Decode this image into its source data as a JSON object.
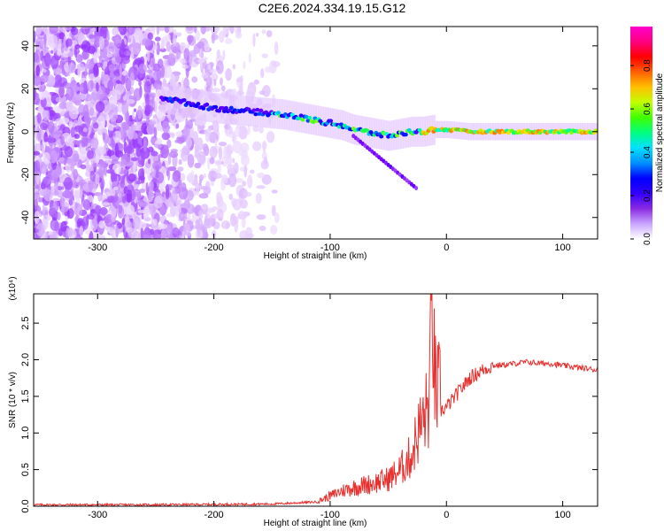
{
  "title": "C2E6.2024.334.19.15.G12",
  "colors": {
    "snr_line": "#e8302e",
    "axes": "#000000",
    "colormap": [
      "#ffffff",
      "#e6ccff",
      "#b36bff",
      "#7a00ff",
      "#3a00ff",
      "#0000ff",
      "#00a0ff",
      "#00ffe0",
      "#00ff60",
      "#80ff00",
      "#ffe000",
      "#ff8000",
      "#ff0000",
      "#ff00aa"
    ]
  },
  "chart_data": [
    {
      "type": "heatmap",
      "xlabel": "Height of straight line (km)",
      "ylabel": "Frequency (Hz)",
      "xlim": [
        -355,
        130
      ],
      "ylim": [
        -50,
        49
      ],
      "xticks": [
        -300,
        -200,
        -100,
        0,
        100
      ],
      "yticks": [
        -40,
        -20,
        0,
        20,
        40
      ],
      "colorbar": {
        "label": "Normalized spectral amplitude",
        "range": [
          0,
          0.98
        ],
        "ticks": [
          0.0,
          0.2,
          0.4,
          0.6,
          0.8
        ]
      },
      "signal_trace": {
        "height_km": [
          -245,
          -220,
          -200,
          -180,
          -160,
          -140,
          -120,
          -100,
          -90,
          -80,
          -70,
          -60,
          -50,
          -40,
          -30,
          -20,
          -10,
          0,
          20,
          50,
          80,
          110,
          130
        ],
        "frequency_hz": [
          16,
          13,
          11,
          10,
          9,
          8,
          6,
          4,
          3,
          1,
          0,
          -1,
          -2,
          -1,
          0,
          0,
          1,
          1,
          0,
          0,
          0,
          0,
          0
        ]
      }
    },
    {
      "type": "line",
      "xlabel": "Height of straight line (km)",
      "ylabel": "SNR (10 * v/v)",
      "y_multiplier": "(x10⁴)",
      "xlim": [
        -355,
        130
      ],
      "ylim": [
        0,
        2.9
      ],
      "xticks": [
        -300,
        -200,
        -100,
        0,
        100
      ],
      "yticks": [
        0.0,
        0.5,
        1.0,
        1.5,
        2.0,
        2.5
      ],
      "series": [
        {
          "x": [
            -355,
            -250,
            -150,
            -110,
            -100,
            -90,
            -80,
            -70,
            -60,
            -50,
            -40,
            -30,
            -25,
            -20,
            -15,
            -12,
            -10,
            -5,
            0,
            10,
            20,
            30,
            40,
            50,
            60,
            70,
            80,
            90,
            100,
            110,
            120,
            130
          ],
          "values": [
            0.02,
            0.02,
            0.03,
            0.06,
            0.12,
            0.18,
            0.22,
            0.25,
            0.28,
            0.32,
            0.42,
            0.6,
            0.85,
            1.0,
            1.2,
            2.4,
            1.4,
            1.3,
            1.35,
            1.55,
            1.75,
            1.85,
            1.92,
            1.93,
            1.95,
            1.97,
            1.95,
            1.95,
            1.92,
            1.9,
            1.88,
            1.86
          ]
        }
      ]
    }
  ]
}
